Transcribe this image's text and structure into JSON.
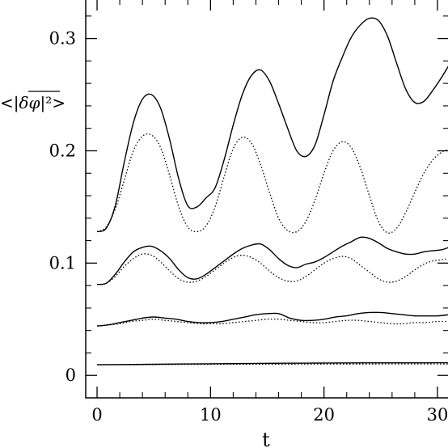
{
  "chart_data": {
    "type": "line",
    "xlabel": "t",
    "ylabel": "<|δφ|²>",
    "ylabel_parts": {
      "open": "<|",
      "overlined": "δφ",
      "close": "|²>"
    },
    "xlim": [
      -1,
      31
    ],
    "ylim": [
      -0.02,
      0.335
    ],
    "x_ticks": [
      0,
      10,
      20,
      30
    ],
    "y_ticks": [
      0,
      0.1,
      0.2,
      0.3
    ],
    "x_tick_labels": [
      "0",
      "10",
      "20",
      "30"
    ],
    "y_tick_labels": [
      "0",
      "0.1",
      "0.2",
      "0.3"
    ],
    "grid": false,
    "legend": "none",
    "series": [
      {
        "style": "solid",
        "x": [
          0,
          0.8,
          1.6,
          2.4,
          3.2,
          4.0,
          4.8,
          5.6,
          6.4,
          7.2,
          8.0,
          8.8,
          9.6,
          10.4,
          11.2,
          12.0,
          12.8,
          13.6,
          14.4,
          15.2,
          16.0,
          16.8,
          17.6,
          18.4,
          19.2,
          20.0,
          20.8,
          21.6,
          22.4,
          23.2,
          24.0,
          24.8,
          25.6,
          26.4,
          27.2,
          28.0,
          28.8,
          29.6,
          30.4,
          31.0
        ],
        "y": [
          0.128,
          0.131,
          0.151,
          0.19,
          0.225,
          0.246,
          0.25,
          0.238,
          0.21,
          0.175,
          0.151,
          0.15,
          0.158,
          0.167,
          0.192,
          0.223,
          0.25,
          0.267,
          0.272,
          0.262,
          0.242,
          0.22,
          0.2,
          0.195,
          0.205,
          0.232,
          0.262,
          0.283,
          0.301,
          0.312,
          0.318,
          0.316,
          0.302,
          0.278,
          0.255,
          0.243,
          0.244,
          0.254,
          0.266,
          0.276
        ]
      },
      {
        "style": "dotted",
        "x": [
          0,
          0.8,
          1.6,
          2.4,
          3.2,
          4.0,
          4.8,
          5.6,
          6.4,
          7.2,
          8.0,
          8.8,
          9.6,
          10.4,
          11.2,
          12.0,
          12.8,
          13.6,
          14.4,
          15.2,
          16.0,
          16.8,
          17.6,
          18.4,
          19.2,
          20.0,
          20.8,
          21.6,
          22.4,
          23.2,
          24.0,
          24.8,
          25.6,
          26.4,
          27.2,
          28.0,
          28.8,
          29.6,
          30.4,
          31.0
        ],
        "y": [
          0.128,
          0.132,
          0.148,
          0.174,
          0.2,
          0.213,
          0.214,
          0.203,
          0.178,
          0.15,
          0.132,
          0.128,
          0.133,
          0.15,
          0.177,
          0.202,
          0.212,
          0.207,
          0.188,
          0.163,
          0.14,
          0.129,
          0.128,
          0.137,
          0.156,
          0.18,
          0.2,
          0.208,
          0.203,
          0.185,
          0.16,
          0.137,
          0.127,
          0.131,
          0.145,
          0.163,
          0.18,
          0.192,
          0.199,
          0.201
        ]
      },
      {
        "style": "solid",
        "x": [
          0,
          0.8,
          1.6,
          2.4,
          3.2,
          4.0,
          4.8,
          5.6,
          6.4,
          7.2,
          8.0,
          8.8,
          9.6,
          10.4,
          11.2,
          12.0,
          12.8,
          13.6,
          14.4,
          15.2,
          16.0,
          16.8,
          17.6,
          18.4,
          19.2,
          20.0,
          20.8,
          21.6,
          22.4,
          23.2,
          24.0,
          24.8,
          25.6,
          26.4,
          27.2,
          28.0,
          28.8,
          29.6,
          30.4,
          31.0
        ],
        "y": [
          0.081,
          0.082,
          0.09,
          0.101,
          0.11,
          0.114,
          0.115,
          0.111,
          0.104,
          0.094,
          0.087,
          0.086,
          0.09,
          0.096,
          0.102,
          0.108,
          0.113,
          0.116,
          0.117,
          0.112,
          0.104,
          0.098,
          0.096,
          0.099,
          0.101,
          0.105,
          0.11,
          0.115,
          0.119,
          0.123,
          0.122,
          0.118,
          0.113,
          0.11,
          0.108,
          0.108,
          0.11,
          0.111,
          0.112,
          0.114
        ]
      },
      {
        "style": "dotted",
        "x": [
          0,
          0.8,
          1.6,
          2.4,
          3.2,
          4.0,
          4.8,
          5.6,
          6.4,
          7.2,
          8.0,
          8.8,
          9.6,
          10.4,
          11.2,
          12.0,
          12.8,
          13.6,
          14.4,
          15.2,
          16.0,
          16.8,
          17.6,
          18.4,
          19.2,
          20.0,
          20.8,
          21.6,
          22.4,
          23.2,
          24.0,
          24.8,
          25.6,
          26.4,
          27.2,
          28.0,
          28.8,
          29.6,
          30.4,
          31.0
        ],
        "y": [
          0.081,
          0.082,
          0.088,
          0.097,
          0.104,
          0.108,
          0.107,
          0.101,
          0.093,
          0.086,
          0.083,
          0.084,
          0.088,
          0.094,
          0.1,
          0.105,
          0.107,
          0.105,
          0.1,
          0.093,
          0.087,
          0.084,
          0.084,
          0.088,
          0.094,
          0.1,
          0.104,
          0.106,
          0.104,
          0.098,
          0.092,
          0.086,
          0.083,
          0.084,
          0.088,
          0.094,
          0.099,
          0.102,
          0.103,
          0.104
        ]
      },
      {
        "style": "solid",
        "x": [
          0,
          1,
          2,
          3,
          4,
          5,
          6,
          7,
          8,
          9,
          10,
          11,
          12,
          13,
          14,
          15,
          16,
          17,
          18,
          19,
          20,
          21,
          22,
          23,
          24,
          25,
          26,
          27,
          28,
          29,
          30,
          31
        ],
        "y": [
          0.044,
          0.045,
          0.047,
          0.049,
          0.051,
          0.052,
          0.051,
          0.05,
          0.048,
          0.047,
          0.047,
          0.048,
          0.05,
          0.052,
          0.054,
          0.055,
          0.055,
          0.051,
          0.049,
          0.049,
          0.05,
          0.052,
          0.053,
          0.055,
          0.056,
          0.056,
          0.055,
          0.054,
          0.053,
          0.053,
          0.053,
          0.054
        ]
      },
      {
        "style": "dotted",
        "x": [
          0,
          1,
          2,
          3,
          4,
          5,
          6,
          7,
          8,
          9,
          10,
          11,
          12,
          13,
          14,
          15,
          16,
          17,
          18,
          19,
          20,
          21,
          22,
          23,
          24,
          25,
          26,
          27,
          28,
          29,
          30,
          31
        ],
        "y": [
          0.044,
          0.045,
          0.046,
          0.048,
          0.049,
          0.05,
          0.049,
          0.048,
          0.047,
          0.046,
          0.046,
          0.046,
          0.047,
          0.048,
          0.049,
          0.05,
          0.05,
          0.049,
          0.048,
          0.047,
          0.047,
          0.048,
          0.049,
          0.049,
          0.048,
          0.047,
          0.046,
          0.046,
          0.047,
          0.047,
          0.048,
          0.048
        ]
      },
      {
        "style": "solid",
        "x": [
          0,
          4,
          8,
          12,
          16,
          20,
          24,
          28,
          31
        ],
        "y": [
          0.0095,
          0.0098,
          0.0102,
          0.0105,
          0.0108,
          0.011,
          0.0112,
          0.0112,
          0.0113
        ]
      },
      {
        "style": "dotted",
        "x": [
          0,
          4,
          8,
          12,
          16,
          20,
          24,
          28,
          31
        ],
        "y": [
          0.0095,
          0.0096,
          0.0098,
          0.0099,
          0.01,
          0.0101,
          0.0101,
          0.0102,
          0.0102
        ]
      }
    ]
  }
}
